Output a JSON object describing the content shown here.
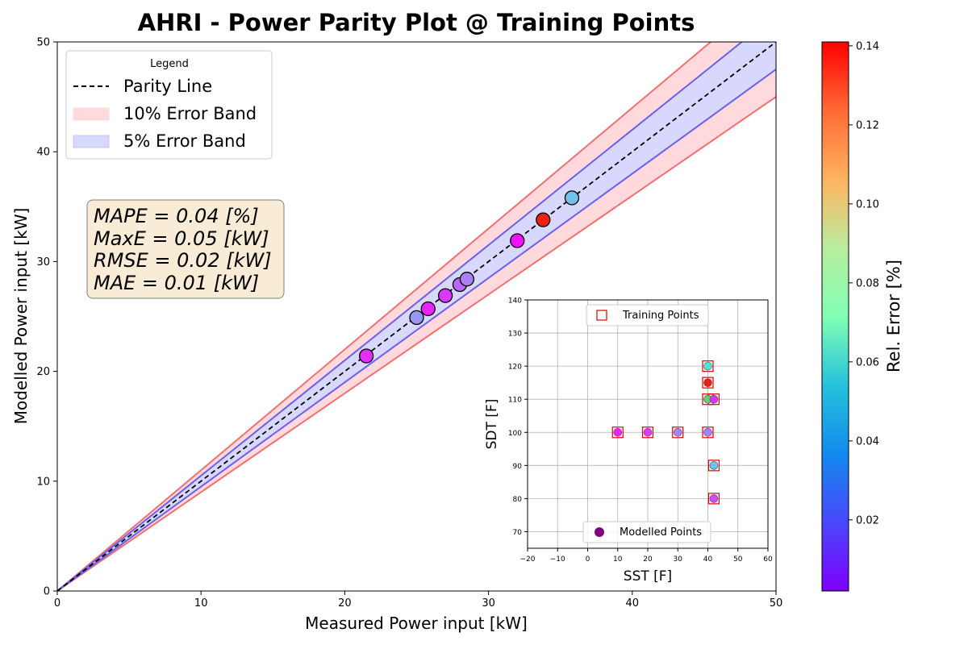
{
  "colors": {
    "parity_line": "#000000",
    "band10_fill": "#ffd9dc",
    "band10_edge": "#f07070",
    "band5_fill": "#d8d8ff",
    "band5_edge": "#6b60e8",
    "metrics_box_fill": "#f8ecd6",
    "metrics_box_edge": "#7f7f7f",
    "training_marker_edge": "#dd0000",
    "modelled_legend_marker": "#800080",
    "grid": "#b0b0b0"
  },
  "chart_data": [
    {
      "type": "scatter",
      "title": "AHRI - Power Parity Plot @ Training Points",
      "xlabel": "Measured Power input [kW]",
      "ylabel": "Modelled Power input [kW]",
      "xlim": [
        0,
        50
      ],
      "ylim": [
        0,
        50
      ],
      "xticks": [
        0,
        10,
        20,
        30,
        40,
        50
      ],
      "yticks": [
        0,
        10,
        20,
        30,
        40,
        50
      ],
      "grid": false,
      "legend": {
        "title": "Legend",
        "placement": "top-left",
        "entries": [
          "Parity Line",
          "10% Error Band",
          "5% Error Band"
        ]
      },
      "bands": [
        {
          "name": "10% Error Band",
          "fraction": 0.1
        },
        {
          "name": "5% Error Band",
          "fraction": 0.05
        }
      ],
      "metrics": [
        "MAPE = 0.04 [%]",
        "MaxE = 0.05 [kW]",
        "RMSE = 0.02 [kW]",
        "MAE = 0.01 [kW]"
      ],
      "points": [
        {
          "x": 21.5,
          "y": 21.4,
          "err": 0.01
        },
        {
          "x": 25.0,
          "y": 24.9,
          "err": 0.03
        },
        {
          "x": 25.8,
          "y": 25.7,
          "err": 0.008
        },
        {
          "x": 27.0,
          "y": 26.9,
          "err": 0.012
        },
        {
          "x": 28.0,
          "y": 27.9,
          "err": 0.02
        },
        {
          "x": 28.5,
          "y": 28.4,
          "err": 0.025
        },
        {
          "x": 32.0,
          "y": 31.9,
          "err": 0.005
        },
        {
          "x": 33.8,
          "y": 33.8,
          "err": 0.135
        },
        {
          "x": 35.8,
          "y": 35.8,
          "err": 0.04
        }
      ]
    },
    {
      "type": "scatter",
      "title": "",
      "xlabel": "SST [F]",
      "ylabel": "SDT [F]",
      "xlim": [
        -20,
        60
      ],
      "ylim": [
        65,
        140
      ],
      "xticks": [
        -20,
        -10,
        0,
        10,
        20,
        30,
        40,
        50,
        60
      ],
      "xtick_labels": [
        "−20",
        "−10",
        "0",
        "10",
        "20",
        "30",
        "40",
        "50",
        "60"
      ],
      "yticks": [
        70,
        80,
        90,
        100,
        110,
        120,
        130,
        140
      ],
      "grid": true,
      "legend_top": {
        "placement": "top-center",
        "entries": [
          "Training Points"
        ]
      },
      "legend_bottom": {
        "placement": "bottom-center",
        "entries": [
          "Modelled Points"
        ]
      },
      "training_points": [
        {
          "x": 10,
          "y": 100
        },
        {
          "x": 20,
          "y": 100
        },
        {
          "x": 30,
          "y": 100
        },
        {
          "x": 40,
          "y": 100
        },
        {
          "x": 40,
          "y": 110
        },
        {
          "x": 40,
          "y": 115
        },
        {
          "x": 40,
          "y": 120
        },
        {
          "x": 42,
          "y": 110
        },
        {
          "x": 42,
          "y": 90
        },
        {
          "x": 42,
          "y": 80
        }
      ],
      "modelled_points": [
        {
          "x": 10,
          "y": 100,
          "err": 0.008
        },
        {
          "x": 20,
          "y": 100,
          "err": 0.012
        },
        {
          "x": 30,
          "y": 100,
          "err": 0.025
        },
        {
          "x": 40,
          "y": 100,
          "err": 0.025
        },
        {
          "x": 40,
          "y": 110,
          "err": 0.1
        },
        {
          "x": 40,
          "y": 115,
          "err": 0.135
        },
        {
          "x": 40,
          "y": 120,
          "err": 0.05
        },
        {
          "x": 42,
          "y": 110,
          "err": 0.01
        },
        {
          "x": 42,
          "y": 90,
          "err": 0.04
        },
        {
          "x": 42,
          "y": 80,
          "err": 0.015
        }
      ]
    }
  ],
  "colorbar": {
    "label": "Rel. Error [%]",
    "colormap": "rainbow",
    "range": [
      0.002,
      0.141
    ],
    "ticks": [
      0.02,
      0.04,
      0.06,
      0.08,
      0.1,
      0.12,
      0.14
    ],
    "tick_labels": [
      "0.02",
      "0.04",
      "0.06",
      "0.08",
      "0.10",
      "0.12",
      "0.14"
    ]
  }
}
